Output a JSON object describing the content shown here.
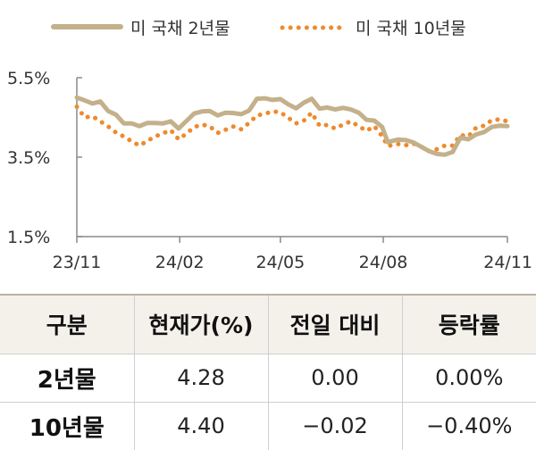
{
  "chart_data": {
    "type": "line",
    "title": "",
    "xlabel": "",
    "ylabel": "",
    "x_ticks": [
      "23/11",
      "24/02",
      "24/05",
      "24/08",
      "24/11"
    ],
    "y_ticks": [
      "5.5%",
      "3.5%",
      "1.5%"
    ],
    "ylim": [
      1.5,
      5.5
    ],
    "grid": false,
    "legend_position": "top",
    "series": [
      {
        "name": "미 국채 2년물",
        "color": "#c4b08a",
        "style": "solid",
        "points": [
          [
            "2023-11-01",
            5.0
          ],
          [
            "2023-11-08",
            4.93
          ],
          [
            "2023-11-15",
            4.85
          ],
          [
            "2023-11-22",
            4.9
          ],
          [
            "2023-11-29",
            4.66
          ],
          [
            "2023-12-06",
            4.57
          ],
          [
            "2023-12-13",
            4.35
          ],
          [
            "2023-12-20",
            4.35
          ],
          [
            "2023-12-27",
            4.28
          ],
          [
            "2024-01-03",
            4.36
          ],
          [
            "2024-01-10",
            4.36
          ],
          [
            "2024-01-17",
            4.35
          ],
          [
            "2024-01-24",
            4.4
          ],
          [
            "2024-01-31",
            4.22
          ],
          [
            "2024-02-07",
            4.41
          ],
          [
            "2024-02-14",
            4.6
          ],
          [
            "2024-02-21",
            4.65
          ],
          [
            "2024-02-28",
            4.66
          ],
          [
            "2024-03-06",
            4.55
          ],
          [
            "2024-03-13",
            4.62
          ],
          [
            "2024-03-20",
            4.61
          ],
          [
            "2024-03-27",
            4.58
          ],
          [
            "2024-04-03",
            4.67
          ],
          [
            "2024-04-10",
            4.97
          ],
          [
            "2024-04-17",
            4.98
          ],
          [
            "2024-04-24",
            4.94
          ],
          [
            "2024-05-01",
            4.96
          ],
          [
            "2024-05-08",
            4.83
          ],
          [
            "2024-05-15",
            4.73
          ],
          [
            "2024-05-22",
            4.87
          ],
          [
            "2024-05-29",
            4.97
          ],
          [
            "2024-06-05",
            4.72
          ],
          [
            "2024-06-12",
            4.75
          ],
          [
            "2024-06-19",
            4.7
          ],
          [
            "2024-06-26",
            4.74
          ],
          [
            "2024-07-03",
            4.7
          ],
          [
            "2024-07-10",
            4.62
          ],
          [
            "2024-07-17",
            4.44
          ],
          [
            "2024-07-24",
            4.42
          ],
          [
            "2024-07-31",
            4.26
          ],
          [
            "2024-08-05",
            3.88
          ],
          [
            "2024-08-14",
            3.94
          ],
          [
            "2024-08-21",
            3.93
          ],
          [
            "2024-08-28",
            3.87
          ],
          [
            "2024-09-04",
            3.76
          ],
          [
            "2024-09-11",
            3.65
          ],
          [
            "2024-09-18",
            3.58
          ],
          [
            "2024-09-25",
            3.56
          ],
          [
            "2024-10-02",
            3.63
          ],
          [
            "2024-10-09",
            3.99
          ],
          [
            "2024-10-16",
            3.95
          ],
          [
            "2024-10-23",
            4.07
          ],
          [
            "2024-10-30",
            4.13
          ],
          [
            "2024-11-06",
            4.26
          ],
          [
            "2024-11-13",
            4.29
          ],
          [
            "2024-11-20",
            4.28
          ]
        ]
      },
      {
        "name": "미 국채 10년물",
        "color": "#ee8a2d",
        "style": "dotted",
        "points": [
          [
            "2023-11-01",
            4.77
          ],
          [
            "2023-11-08",
            4.5
          ],
          [
            "2023-11-15",
            4.53
          ],
          [
            "2023-11-22",
            4.4
          ],
          [
            "2023-11-29",
            4.27
          ],
          [
            "2023-12-06",
            4.12
          ],
          [
            "2023-12-13",
            4.02
          ],
          [
            "2023-12-20",
            3.9
          ],
          [
            "2023-12-27",
            3.79
          ],
          [
            "2024-01-03",
            3.91
          ],
          [
            "2024-01-10",
            4.02
          ],
          [
            "2024-01-17",
            4.1
          ],
          [
            "2024-01-24",
            4.18
          ],
          [
            "2024-01-31",
            3.95
          ],
          [
            "2024-02-07",
            4.09
          ],
          [
            "2024-02-14",
            4.26
          ],
          [
            "2024-02-21",
            4.32
          ],
          [
            "2024-02-28",
            4.27
          ],
          [
            "2024-03-06",
            4.11
          ],
          [
            "2024-03-13",
            4.19
          ],
          [
            "2024-03-20",
            4.27
          ],
          [
            "2024-03-27",
            4.2
          ],
          [
            "2024-04-03",
            4.36
          ],
          [
            "2024-04-10",
            4.55
          ],
          [
            "2024-04-17",
            4.59
          ],
          [
            "2024-04-24",
            4.65
          ],
          [
            "2024-05-01",
            4.63
          ],
          [
            "2024-05-08",
            4.49
          ],
          [
            "2024-05-15",
            4.35
          ],
          [
            "2024-05-22",
            4.42
          ],
          [
            "2024-05-29",
            4.62
          ],
          [
            "2024-06-05",
            4.29
          ],
          [
            "2024-06-12",
            4.31
          ],
          [
            "2024-06-19",
            4.22
          ],
          [
            "2024-06-26",
            4.32
          ],
          [
            "2024-07-03",
            4.4
          ],
          [
            "2024-07-10",
            4.28
          ],
          [
            "2024-07-17",
            4.16
          ],
          [
            "2024-07-24",
            4.28
          ],
          [
            "2024-07-31",
            4.03
          ],
          [
            "2024-08-05",
            3.78
          ],
          [
            "2024-08-14",
            3.83
          ],
          [
            "2024-08-21",
            3.8
          ],
          [
            "2024-08-28",
            3.84
          ],
          [
            "2024-09-04",
            3.76
          ],
          [
            "2024-09-11",
            3.65
          ],
          [
            "2024-09-18",
            3.7
          ],
          [
            "2024-09-25",
            3.79
          ],
          [
            "2024-10-02",
            3.79
          ],
          [
            "2024-10-09",
            4.06
          ],
          [
            "2024-10-16",
            4.02
          ],
          [
            "2024-10-23",
            4.24
          ],
          [
            "2024-10-30",
            4.29
          ],
          [
            "2024-11-06",
            4.43
          ],
          [
            "2024-11-13",
            4.45
          ],
          [
            "2024-11-20",
            4.4
          ]
        ]
      }
    ]
  },
  "table": {
    "headers": [
      "구분",
      "현재가(%)",
      "전일 대비",
      "등락률"
    ],
    "rows": [
      [
        "2년물",
        "4.28",
        "0.00",
        "0.00%"
      ],
      [
        "10년물",
        "4.40",
        "−0.02",
        "−0.40%"
      ]
    ]
  }
}
